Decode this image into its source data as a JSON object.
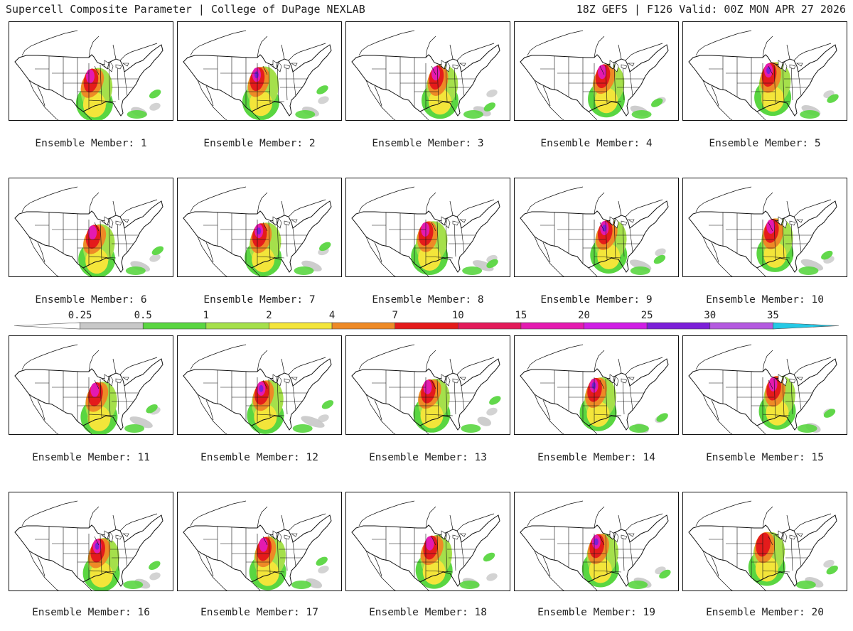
{
  "header": {
    "left": "Supercell Composite Parameter | College of DuPage NEXLAB",
    "right": "18Z GEFS | F126 Valid: 00Z MON APR 27 2026"
  },
  "members": [
    {
      "label": "Ensemble Member: 1"
    },
    {
      "label": "Ensemble Member: 2"
    },
    {
      "label": "Ensemble Member: 3"
    },
    {
      "label": "Ensemble Member: 4"
    },
    {
      "label": "Ensemble Member: 5"
    },
    {
      "label": "Ensemble Member: 6"
    },
    {
      "label": "Ensemble Member: 7"
    },
    {
      "label": "Ensemble Member: 8"
    },
    {
      "label": "Ensemble Member: 9"
    },
    {
      "label": "Ensemble Member: 10"
    },
    {
      "label": "Ensemble Member: 11"
    },
    {
      "label": "Ensemble Member: 12"
    },
    {
      "label": "Ensemble Member: 13"
    },
    {
      "label": "Ensemble Member: 14"
    },
    {
      "label": "Ensemble Member: 15"
    },
    {
      "label": "Ensemble Member: 16"
    },
    {
      "label": "Ensemble Member: 17"
    },
    {
      "label": "Ensemble Member: 18"
    },
    {
      "label": "Ensemble Member: 19"
    },
    {
      "label": "Ensemble Member: 20"
    }
  ],
  "colorbar": {
    "labels": [
      "0.25",
      "0.5",
      "1",
      "2",
      "4",
      "7",
      "10",
      "15",
      "20",
      "25",
      "30",
      "35"
    ],
    "colors": [
      "#ffffff",
      "#c8c8c8",
      "#5ad641",
      "#a5e04b",
      "#f3e53a",
      "#ee8a26",
      "#e41b1b",
      "#e31a5a",
      "#e41ab0",
      "#cf1ee4",
      "#7c20d8",
      "#b45ae0",
      "#25c9e6"
    ]
  }
}
